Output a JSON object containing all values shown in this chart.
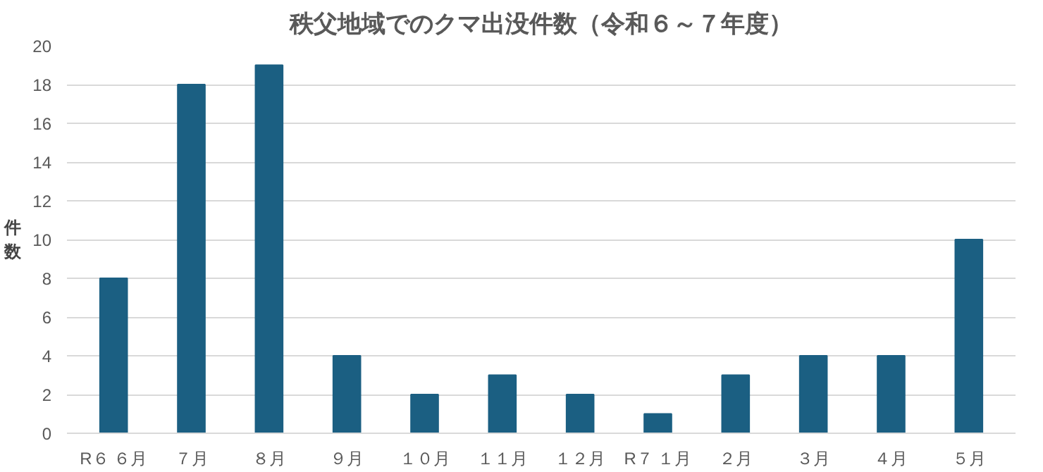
{
  "chart_data": {
    "type": "bar",
    "title": "秩父地域でのクマ出没件数（令和６～７年度）",
    "ylabel": "件数",
    "categories": [
      "R６ ６月",
      "７月",
      "８月",
      "９月",
      "１０月",
      "１１月",
      "１２月",
      "R７ １月",
      "２月",
      "３月",
      "４月",
      "５月"
    ],
    "values": [
      8,
      18,
      19,
      4,
      2,
      3,
      2,
      1,
      3,
      4,
      4,
      10
    ],
    "color": "#1b5f82",
    "ylim": [
      0,
      20
    ],
    "yticks": [
      0,
      2,
      4,
      6,
      8,
      10,
      12,
      14,
      16,
      18,
      20
    ],
    "grid": "y"
  }
}
